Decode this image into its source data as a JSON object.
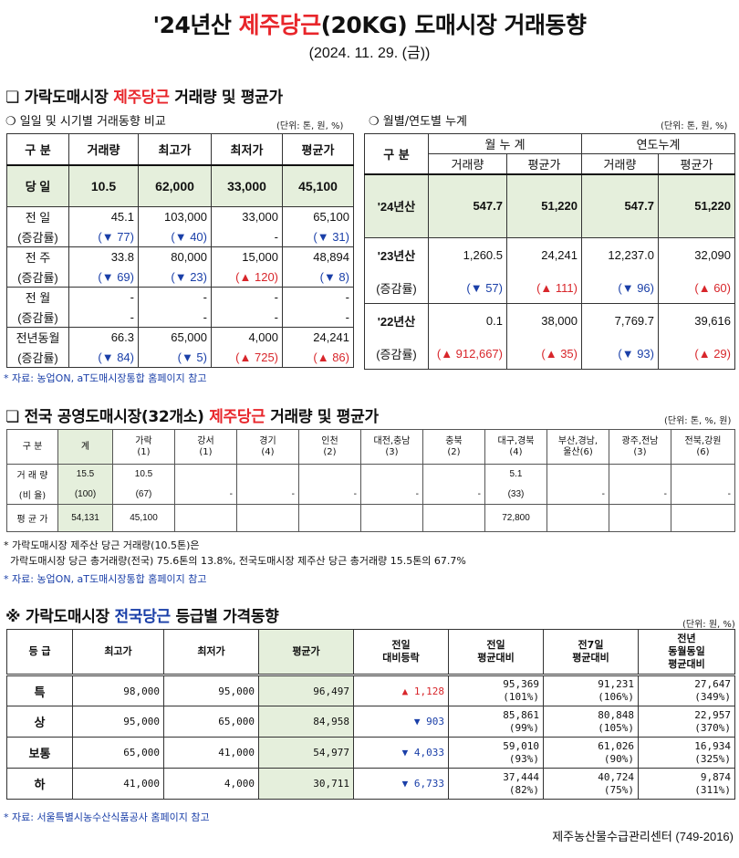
{
  "header": {
    "title_pre": "'24년산 ",
    "title_red": "제주당근",
    "title_post": "(20KG) 도매시장 거래동향",
    "date": "(2024. 11. 29. (금))"
  },
  "section1": {
    "bullet": "❏",
    "title_pre": " 가락도매시장 ",
    "title_red": "제주당근",
    "title_post": " 거래량 및 평균가",
    "left_sub": "❍ 일일 및 시기별 거래동향 비교",
    "left_unit": "(단위: 톤, 원, %)",
    "right_sub": "❍ 월별/연도별 누계",
    "right_unit": "(단위: 톤, 원, %)",
    "left_table": {
      "headers": [
        "구  분",
        "거래량",
        "최고가",
        "최저가",
        "평균가"
      ],
      "today": {
        "label": "당  일",
        "values": [
          "10.5",
          "62,000",
          "33,000",
          "45,100"
        ]
      },
      "rows": [
        {
          "label": "전  일",
          "values": [
            "45.1",
            "103,000",
            "33,000",
            "65,100"
          ],
          "change_label": "(증감률)",
          "changes": [
            "(▼ 77)",
            "(▼ 40)",
            "-",
            "(▼ 31)"
          ],
          "dirs": [
            "down",
            "down",
            "none",
            "down"
          ]
        },
        {
          "label": "전  주",
          "values": [
            "33.8",
            "80,000",
            "15,000",
            "48,894"
          ],
          "change_label": "(증감률)",
          "changes": [
            "(▼ 69)",
            "(▼ 23)",
            "(▲ 120)",
            "(▼ 8)"
          ],
          "dirs": [
            "down",
            "down",
            "up",
            "down"
          ]
        },
        {
          "label": "전  월",
          "values": [
            "-",
            "-",
            "-",
            "-"
          ],
          "change_label": "(증감률)",
          "changes": [
            "-",
            "-",
            "-",
            "-"
          ],
          "dirs": [
            "none",
            "none",
            "none",
            "none"
          ]
        },
        {
          "label": "전년동월",
          "values": [
            "66.3",
            "65,000",
            "4,000",
            "24,241"
          ],
          "change_label": "(증감률)",
          "changes": [
            "(▼ 84)",
            "(▼ 5)",
            "(▲ 725)",
            "(▲ 86)"
          ],
          "dirs": [
            "down",
            "down",
            "up",
            "up"
          ]
        }
      ]
    },
    "right_table": {
      "head_label": "구  분",
      "group1": "월 누 계",
      "group2": "연도누계",
      "cols": [
        "거래량",
        "평균가",
        "거래량",
        "평균가"
      ],
      "current": {
        "label": "'24년산",
        "values": [
          "547.7",
          "51,220",
          "547.7",
          "51,220"
        ]
      },
      "rows": [
        {
          "label": "'23년산",
          "values": [
            "1,260.5",
            "24,241",
            "12,237.0",
            "32,090"
          ],
          "change_label": "(증감률)",
          "changes": [
            "(▼ 57)",
            "(▲ 111)",
            "(▼ 96)",
            "(▲ 60)"
          ],
          "dirs": [
            "down",
            "up",
            "down",
            "up"
          ]
        },
        {
          "label": "'22년산",
          "values": [
            "0.1",
            "38,000",
            "7,769.7",
            "39,616"
          ],
          "change_label": "(증감률)",
          "changes": [
            "(▲ 912,667)",
            "(▲ 35)",
            "(▼ 93)",
            "(▲ 29)"
          ],
          "dirs": [
            "up",
            "up",
            "down",
            "up"
          ]
        }
      ]
    },
    "note": "* 자료: 농업ON, aT도매시장통합 홈페이지 참고"
  },
  "section2": {
    "bullet": "❏",
    "title_pre": " 전국 공영도매시장(32개소) ",
    "title_red": "제주당근",
    "title_post": " 거래량 및 평균가",
    "unit": "(단위: 톤, %, 원)",
    "headers": [
      [
        "구  분",
        ""
      ],
      [
        "계",
        ""
      ],
      [
        "가락",
        "(1)"
      ],
      [
        "강서",
        "(1)"
      ],
      [
        "경기",
        "(4)"
      ],
      [
        "인천",
        "(2)"
      ],
      [
        "대전,충남",
        "(3)"
      ],
      [
        "충북",
        "(2)"
      ],
      [
        "대구,경북",
        "(4)"
      ],
      [
        "부산,경남,",
        "울산(6)"
      ],
      [
        "광주,전남",
        "(3)"
      ],
      [
        "전북,강원",
        "(6)"
      ]
    ],
    "rows": [
      {
        "label": "거 래 량",
        "values": [
          "15.5",
          "10.5",
          "",
          "",
          "",
          "",
          "",
          "5.1",
          "",
          "",
          ""
        ]
      },
      {
        "label": "(비 율)",
        "values": [
          "(100)",
          "(67)",
          "-",
          "-",
          "-",
          "-",
          "-",
          "(33)",
          "-",
          "-",
          "-"
        ]
      },
      {
        "label": "평 균 가",
        "values": [
          "54,131",
          "45,100",
          "",
          "",
          "",
          "",
          "",
          "72,800",
          "",
          "",
          ""
        ]
      }
    ],
    "note_line1": "* 가락도매시장 제주산 당근 거래량(10.5톤)은",
    "note_line2": "  가락도매시장 당근 총거래량(전국) 75.6톤의 13.8%, 전국도매시장 제주산 당근 총거래량 15.5톤의 67.7%",
    "note": "* 자료: 농업ON, aT도매시장통합 홈페이지 참고"
  },
  "section3": {
    "bullet": "※",
    "title_pre": " 가락도매시장 ",
    "title_blue": "전국당근",
    "title_post": " 등급별 가격동향",
    "unit": "(단위: 원, %)",
    "headers": [
      "등  급",
      "최고가",
      "최저가",
      "평균가",
      "전일\n대비등락",
      "전일\n평균대비",
      "전7일\n평균대비",
      "전년\n동월동일\n평균대비"
    ],
    "rows": [
      {
        "grade": "특",
        "max": "98,000",
        "min": "95,000",
        "avg": "96,497",
        "diff": "▲ 1,128",
        "dir": "up",
        "prev_avg": "95,369",
        "prev_pct": "(101%)",
        "p7_avg": "91,231",
        "p7_pct": "(106%)",
        "py_avg": "27,647",
        "py_pct": "(349%)"
      },
      {
        "grade": "상",
        "max": "95,000",
        "min": "65,000",
        "avg": "84,958",
        "diff": "▼ 903",
        "dir": "down",
        "prev_avg": "85,861",
        "prev_pct": "(99%)",
        "p7_avg": "80,848",
        "p7_pct": "(105%)",
        "py_avg": "22,957",
        "py_pct": "(370%)"
      },
      {
        "grade": "보통",
        "max": "65,000",
        "min": "41,000",
        "avg": "54,977",
        "diff": "▼ 4,033",
        "dir": "down",
        "prev_avg": "59,010",
        "prev_pct": "(93%)",
        "p7_avg": "61,026",
        "p7_pct": "(90%)",
        "py_avg": "16,934",
        "py_pct": "(325%)"
      },
      {
        "grade": "하",
        "max": "41,000",
        "min": "4,000",
        "avg": "30,711",
        "diff": "▼ 6,733",
        "dir": "down",
        "prev_avg": "37,444",
        "prev_pct": "(82%)",
        "p7_avg": "40,724",
        "p7_pct": "(75%)",
        "py_avg": "9,874",
        "py_pct": "(311%)"
      }
    ],
    "note": "* 자료: 서울특별시농수산식품공사 홈페이지 참고"
  },
  "footer": {
    "center": "제주농산물수급관리센터 (749-2016)"
  },
  "colors": {
    "red": "#e8262b",
    "blue": "#1a3fa8",
    "highlight": "#e5efdc"
  }
}
